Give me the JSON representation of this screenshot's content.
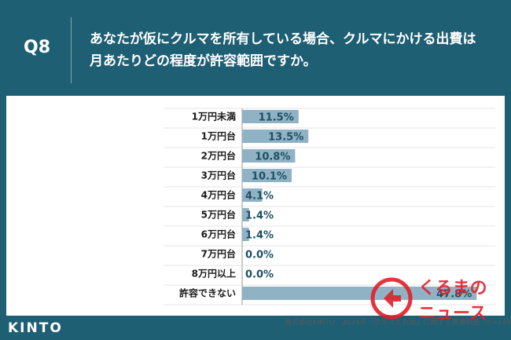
{
  "header": {
    "question_no": "Q8",
    "question_line1": "あなたが仮にクルマを所有している場合、クルマにかける出費は",
    "question_line2": "月あたりどの程度が許容範囲ですか。"
  },
  "chart_data": {
    "type": "bar",
    "orientation": "horizontal",
    "categories": [
      "1万円未満",
      "1万円台",
      "2万円台",
      "3万円台",
      "4万円台",
      "5万円台",
      "6万円台",
      "7万円台",
      "8万円以上",
      "許容できない"
    ],
    "values": [
      11.5,
      13.5,
      10.8,
      10.1,
      4.1,
      1.4,
      1.4,
      0.0,
      0.0,
      47.8
    ],
    "value_labels": [
      "11.5%",
      "13.5%",
      "10.8%",
      "10.1%",
      "4.1%",
      "1.4%",
      "1.4%",
      "0.0%",
      "0.0%",
      "47.8%"
    ],
    "bar_color": "#8fb2c4",
    "grid": true
  },
  "footer": {
    "logo": "KINTO",
    "source": "株式会社KINTO　2024年「クルマとお金」に関する意識調査（n=1491）"
  },
  "watermark": {
    "text_line1": "くるまの",
    "text_line2": "ニュース",
    "color": "#e0202a"
  }
}
